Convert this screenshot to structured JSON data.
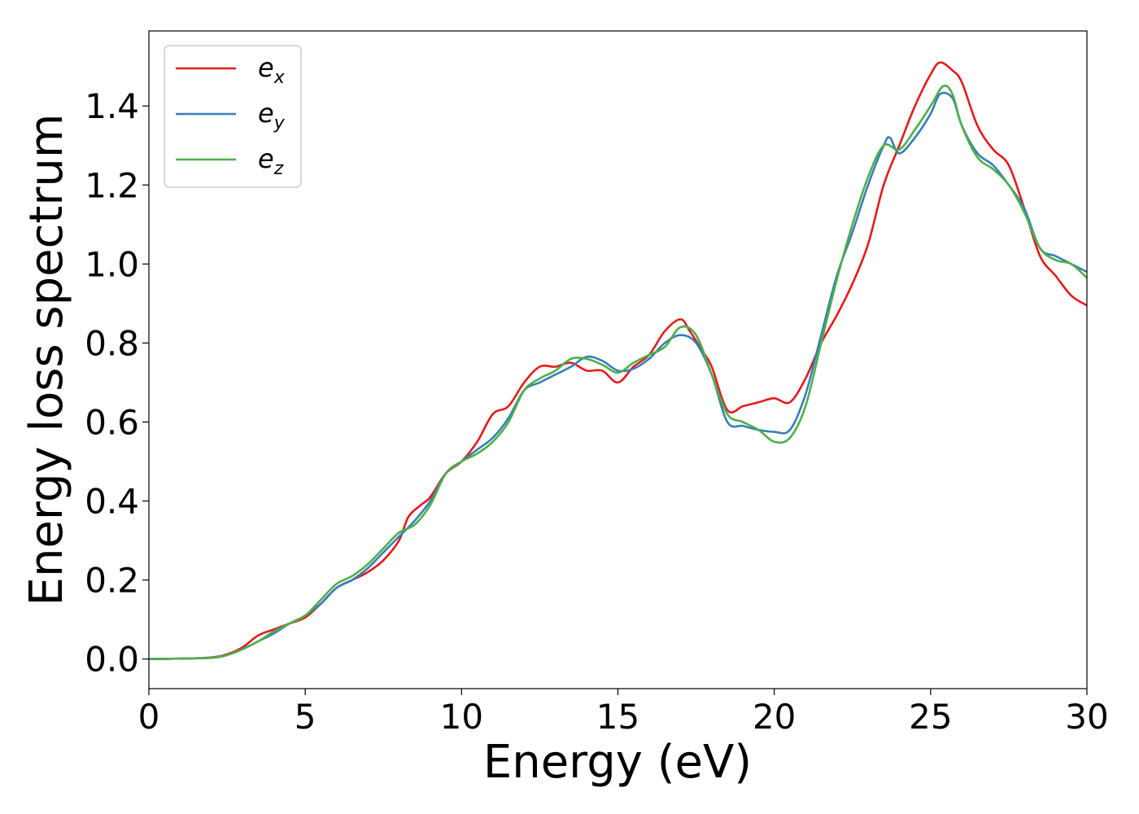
{
  "chart_data": {
    "type": "line",
    "xlabel": "Energy (eV)",
    "ylabel": "Energy loss spectrum",
    "xlim": [
      0,
      30
    ],
    "ylim": [
      -0.075,
      1.59
    ],
    "xticks": [
      0,
      5,
      10,
      15,
      20,
      25,
      30
    ],
    "xtick_labels": [
      "0",
      "5",
      "10",
      "15",
      "20",
      "25",
      "30"
    ],
    "yticks": [
      0.0,
      0.2,
      0.4,
      0.6,
      0.8,
      1.0,
      1.2,
      1.4
    ],
    "ytick_labels": [
      "0.0",
      "0.2",
      "0.4",
      "0.6",
      "0.8",
      "1.0",
      "1.2",
      "1.4"
    ],
    "grid": false,
    "legend_position": "top-left",
    "series": [
      {
        "name": "e",
        "subscript": "x",
        "color": "#e41a1c",
        "points": [
          [
            0,
            0.0
          ],
          [
            1,
            0.001
          ],
          [
            2,
            0.004
          ],
          [
            2.5,
            0.012
          ],
          [
            3,
            0.03
          ],
          [
            3.5,
            0.06
          ],
          [
            4,
            0.075
          ],
          [
            4.5,
            0.09
          ],
          [
            5,
            0.105
          ],
          [
            5.5,
            0.14
          ],
          [
            6,
            0.18
          ],
          [
            6.5,
            0.2
          ],
          [
            7,
            0.22
          ],
          [
            7.5,
            0.25
          ],
          [
            8,
            0.3
          ],
          [
            8.3,
            0.36
          ],
          [
            8.7,
            0.39
          ],
          [
            9,
            0.41
          ],
          [
            9.5,
            0.47
          ],
          [
            10,
            0.5
          ],
          [
            10.5,
            0.55
          ],
          [
            11,
            0.62
          ],
          [
            11.5,
            0.64
          ],
          [
            12,
            0.7
          ],
          [
            12.5,
            0.74
          ],
          [
            13,
            0.74
          ],
          [
            13.5,
            0.75
          ],
          [
            14,
            0.73
          ],
          [
            14.5,
            0.73
          ],
          [
            15,
            0.7
          ],
          [
            15.5,
            0.74
          ],
          [
            16,
            0.77
          ],
          [
            16.5,
            0.83
          ],
          [
            17,
            0.86
          ],
          [
            17.3,
            0.83
          ],
          [
            17.7,
            0.78
          ],
          [
            18,
            0.74
          ],
          [
            18.5,
            0.63
          ],
          [
            19,
            0.64
          ],
          [
            19.5,
            0.65
          ],
          [
            20,
            0.66
          ],
          [
            20.5,
            0.65
          ],
          [
            21,
            0.71
          ],
          [
            21.5,
            0.8
          ],
          [
            22,
            0.87
          ],
          [
            22.5,
            0.95
          ],
          [
            23,
            1.05
          ],
          [
            23.5,
            1.2
          ],
          [
            24,
            1.3
          ],
          [
            24.5,
            1.4
          ],
          [
            25,
            1.48
          ],
          [
            25.3,
            1.51
          ],
          [
            25.7,
            1.49
          ],
          [
            26,
            1.46
          ],
          [
            26.5,
            1.35
          ],
          [
            27,
            1.29
          ],
          [
            27.5,
            1.25
          ],
          [
            28,
            1.14
          ],
          [
            28.5,
            1.02
          ],
          [
            29,
            0.97
          ],
          [
            29.5,
            0.92
          ],
          [
            30,
            0.895
          ]
        ]
      },
      {
        "name": "e",
        "subscript": "y",
        "color": "#377eb8",
        "points": [
          [
            0,
            0.0
          ],
          [
            1,
            0.001
          ],
          [
            2,
            0.003
          ],
          [
            2.5,
            0.01
          ],
          [
            3,
            0.025
          ],
          [
            3.5,
            0.045
          ],
          [
            4,
            0.065
          ],
          [
            4.5,
            0.09
          ],
          [
            5,
            0.11
          ],
          [
            5.5,
            0.14
          ],
          [
            6,
            0.18
          ],
          [
            6.5,
            0.2
          ],
          [
            7,
            0.23
          ],
          [
            7.5,
            0.27
          ],
          [
            8,
            0.31
          ],
          [
            8.5,
            0.35
          ],
          [
            9,
            0.4
          ],
          [
            9.5,
            0.47
          ],
          [
            10,
            0.5
          ],
          [
            10.5,
            0.53
          ],
          [
            11,
            0.56
          ],
          [
            11.5,
            0.61
          ],
          [
            12,
            0.68
          ],
          [
            12.5,
            0.7
          ],
          [
            13,
            0.72
          ],
          [
            13.5,
            0.74
          ],
          [
            14,
            0.765
          ],
          [
            14.5,
            0.755
          ],
          [
            15,
            0.73
          ],
          [
            15.5,
            0.735
          ],
          [
            16,
            0.76
          ],
          [
            16.5,
            0.8
          ],
          [
            17,
            0.82
          ],
          [
            17.5,
            0.8
          ],
          [
            18,
            0.72
          ],
          [
            18.5,
            0.6
          ],
          [
            19,
            0.59
          ],
          [
            19.5,
            0.58
          ],
          [
            20,
            0.575
          ],
          [
            20.5,
            0.58
          ],
          [
            21,
            0.67
          ],
          [
            21.5,
            0.82
          ],
          [
            22,
            0.97
          ],
          [
            22.5,
            1.08
          ],
          [
            23,
            1.2
          ],
          [
            23.5,
            1.3
          ],
          [
            23.7,
            1.32
          ],
          [
            24,
            1.28
          ],
          [
            24.5,
            1.32
          ],
          [
            25,
            1.38
          ],
          [
            25.3,
            1.43
          ],
          [
            25.7,
            1.42
          ],
          [
            26,
            1.35
          ],
          [
            26.5,
            1.28
          ],
          [
            27,
            1.25
          ],
          [
            27.5,
            1.2
          ],
          [
            28,
            1.14
          ],
          [
            28.5,
            1.04
          ],
          [
            29,
            1.02
          ],
          [
            29.5,
            1.0
          ],
          [
            30,
            0.98
          ]
        ]
      },
      {
        "name": "e",
        "subscript": "z",
        "color": "#4daf4a",
        "points": [
          [
            0,
            0.0
          ],
          [
            1,
            0.001
          ],
          [
            2,
            0.003
          ],
          [
            2.5,
            0.01
          ],
          [
            3,
            0.025
          ],
          [
            3.5,
            0.045
          ],
          [
            4,
            0.07
          ],
          [
            4.5,
            0.09
          ],
          [
            5,
            0.11
          ],
          [
            5.5,
            0.15
          ],
          [
            6,
            0.19
          ],
          [
            6.5,
            0.21
          ],
          [
            7,
            0.24
          ],
          [
            7.5,
            0.28
          ],
          [
            8,
            0.32
          ],
          [
            8.5,
            0.34
          ],
          [
            9,
            0.39
          ],
          [
            9.5,
            0.47
          ],
          [
            10,
            0.5
          ],
          [
            10.5,
            0.52
          ],
          [
            11,
            0.55
          ],
          [
            11.5,
            0.6
          ],
          [
            12,
            0.68
          ],
          [
            12.5,
            0.71
          ],
          [
            13,
            0.73
          ],
          [
            13.5,
            0.76
          ],
          [
            14,
            0.76
          ],
          [
            14.5,
            0.745
          ],
          [
            15,
            0.725
          ],
          [
            15.5,
            0.75
          ],
          [
            16,
            0.77
          ],
          [
            16.5,
            0.79
          ],
          [
            17,
            0.84
          ],
          [
            17.5,
            0.82
          ],
          [
            18,
            0.72
          ],
          [
            18.5,
            0.62
          ],
          [
            19,
            0.6
          ],
          [
            19.5,
            0.58
          ],
          [
            20,
            0.55
          ],
          [
            20.5,
            0.56
          ],
          [
            21,
            0.64
          ],
          [
            21.5,
            0.8
          ],
          [
            22,
            0.96
          ],
          [
            22.5,
            1.1
          ],
          [
            23,
            1.22
          ],
          [
            23.5,
            1.3
          ],
          [
            24,
            1.29
          ],
          [
            24.5,
            1.34
          ],
          [
            25,
            1.4
          ],
          [
            25.4,
            1.45
          ],
          [
            25.7,
            1.43
          ],
          [
            26,
            1.35
          ],
          [
            26.5,
            1.27
          ],
          [
            27,
            1.24
          ],
          [
            27.5,
            1.2
          ],
          [
            28,
            1.13
          ],
          [
            28.5,
            1.04
          ],
          [
            29,
            1.01
          ],
          [
            29.5,
            1.0
          ],
          [
            30,
            0.965
          ]
        ]
      }
    ]
  }
}
